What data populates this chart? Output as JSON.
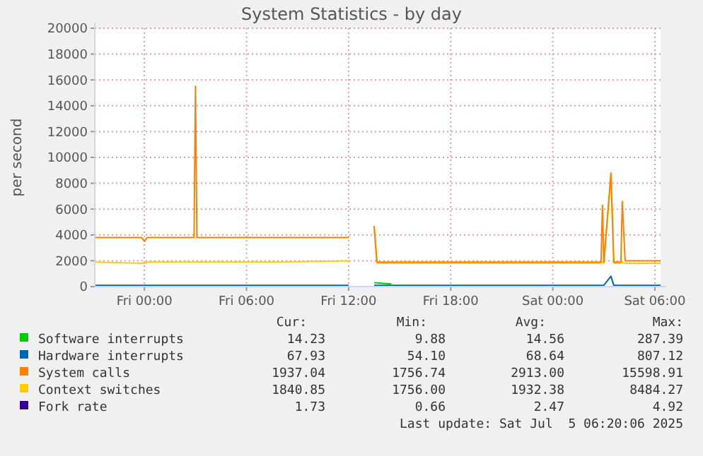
{
  "chart_data": {
    "type": "line",
    "title": "System Statistics - by day",
    "ylabel": "per second",
    "x": [
      "2025-07-03T21:05",
      "2025-07-03T23:50",
      "2025-07-04T00:00",
      "2025-07-04T00:10",
      "2025-07-04T02:55",
      "2025-07-04T03:00",
      "2025-07-04T03:05",
      "2025-07-04T08:00",
      "2025-07-04T12:00",
      "2025-07-04T12:05",
      "2025-07-04T13:30",
      "2025-07-04T13:40",
      "2025-07-04T18:00",
      "2025-07-05T00:00",
      "2025-07-05T02:50",
      "2025-07-05T02:55",
      "2025-07-05T03:00",
      "2025-07-05T03:25",
      "2025-07-05T03:35",
      "2025-07-05T04:00",
      "2025-07-05T04:05",
      "2025-07-05T04:15",
      "2025-07-05T06:20"
    ],
    "series": [
      {
        "name": "Software interrupts",
        "color": "#00cc00",
        "x": [
          "2025-07-04T13:30",
          "2025-07-04T14:30"
        ],
        "values": [
          300,
          200
        ]
      },
      {
        "name": "Hardware interrupts",
        "color": "#0066b3",
        "values": [
          100,
          100,
          100,
          100,
          100,
          100,
          100,
          100,
          100,
          null,
          100,
          100,
          100,
          100,
          100,
          100,
          100,
          800,
          100,
          100,
          100,
          100,
          100
        ]
      },
      {
        "name": "System calls",
        "color": "#ff8000",
        "values": [
          3800,
          3800,
          3500,
          3800,
          3800,
          15500,
          3800,
          3800,
          3800,
          null,
          4700,
          1900,
          1900,
          1900,
          1900,
          6300,
          1900,
          8800,
          1900,
          1900,
          6600,
          2000,
          2000
        ]
      },
      {
        "name": "Context switches",
        "color": "#ffcc00",
        "values": [
          1900,
          1800,
          1800,
          1900,
          1900,
          1900,
          1900,
          1900,
          2000,
          null,
          4500,
          1800,
          1800,
          1800,
          1800,
          1900,
          1800,
          8500,
          1800,
          1800,
          1900,
          1800,
          1800
        ]
      },
      {
        "name": "Fork rate",
        "color": "#330099",
        "values": [
          null,
          null,
          null,
          null,
          null,
          null,
          null,
          null,
          null,
          null,
          null,
          null,
          null,
          null,
          null,
          null,
          null,
          null,
          null,
          null,
          null,
          null,
          null
        ]
      }
    ],
    "xlim": [
      "2025-07-03T21:05",
      "2025-07-05T06:20"
    ],
    "xticks": [
      {
        "value": "2025-07-04T00:00",
        "label": "Fri 00:00"
      },
      {
        "value": "2025-07-04T06:00",
        "label": "Fri 06:00"
      },
      {
        "value": "2025-07-04T12:00",
        "label": "Fri 12:00"
      },
      {
        "value": "2025-07-04T18:00",
        "label": "Fri 18:00"
      },
      {
        "value": "2025-07-05T00:00",
        "label": "Sat 00:00"
      },
      {
        "value": "2025-07-05T06:00",
        "label": "Sat 06:00"
      }
    ],
    "ylim": [
      0,
      20000
    ],
    "yticks": [
      0,
      2000,
      4000,
      6000,
      8000,
      10000,
      12000,
      14000,
      16000,
      18000,
      20000
    ],
    "grid": true,
    "legend": "bottom",
    "line_style": "solid",
    "marker": "none",
    "annotations": [
      "Cur:",
      "Min:",
      "Avg:",
      "Max:",
      "14.23",
      "9.88",
      "14.56",
      "287.39",
      "67.93",
      "54.10",
      "68.64",
      "807.12",
      "1937.04",
      "1756.74",
      "2913.00",
      "15598.91",
      "1840.85",
      "1756.00",
      "1932.38",
      "8484.27",
      "1.73",
      "0.66",
      "2.47",
      "4.92",
      "Last update: Sat Jul  5 06:20:06 2025"
    ]
  }
}
